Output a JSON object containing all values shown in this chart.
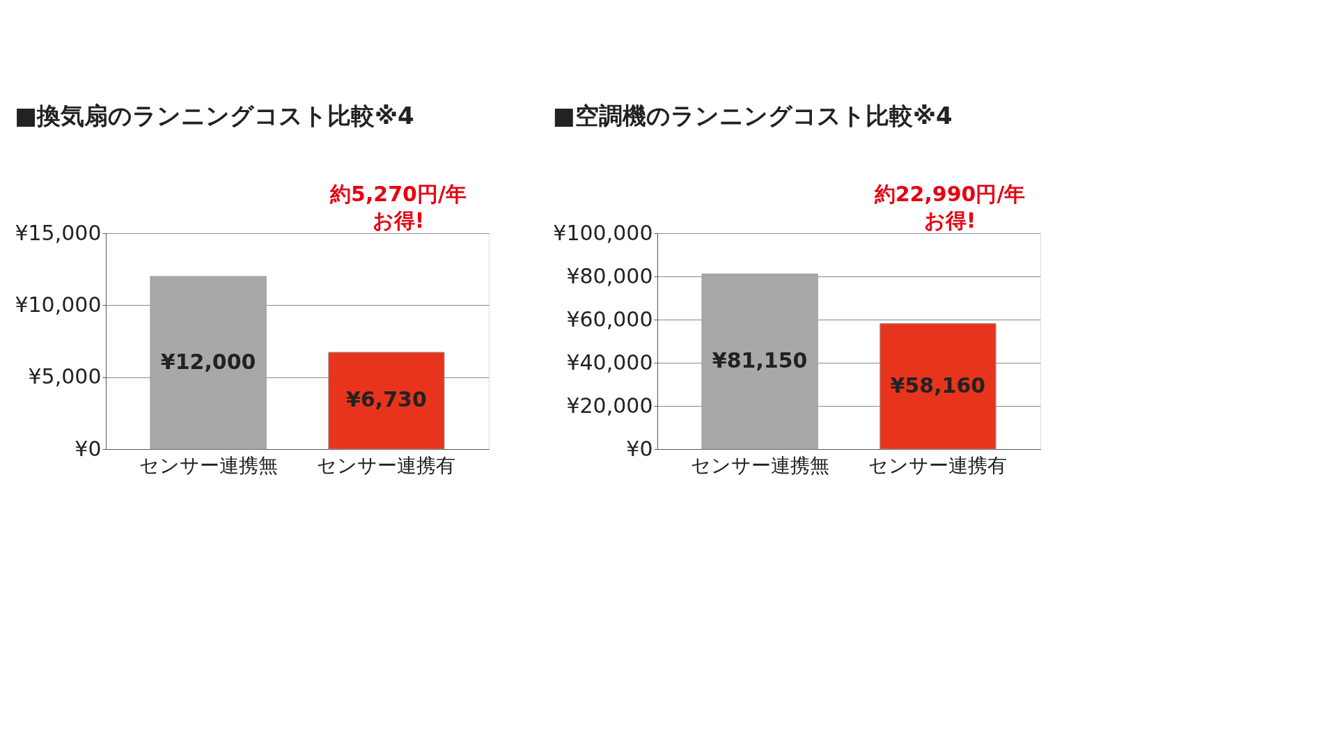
{
  "chart_data": [
    {
      "type": "bar",
      "title": "■換気扇のランニングコスト比較※4",
      "categories": [
        "センサー連携無",
        "センサー連携有"
      ],
      "values": [
        12000,
        6730
      ],
      "colors": [
        "#a8a8a8",
        "#e8341c"
      ],
      "value_labels": [
        "¥12,000",
        "¥6,730"
      ],
      "ylim": [
        0,
        15000
      ],
      "yticks": [
        {
          "value": 0,
          "label": "¥0"
        },
        {
          "value": 5000,
          "label": "¥5,000"
        },
        {
          "value": 10000,
          "label": "¥10,000"
        },
        {
          "value": 15000,
          "label": "¥15,000"
        }
      ],
      "grid": "y",
      "annotations": [
        "約5,270円/年",
        "お得!"
      ]
    },
    {
      "type": "bar",
      "title": "■空調機のランニングコスト比較※4",
      "categories": [
        "センサー連携無",
        "センサー連携有"
      ],
      "values": [
        81150,
        58160
      ],
      "colors": [
        "#a8a8a8",
        "#e8341c"
      ],
      "value_labels": [
        "¥81,150",
        "¥58,160"
      ],
      "ylim": [
        0,
        100000
      ],
      "yticks": [
        {
          "value": 0,
          "label": "¥0"
        },
        {
          "value": 20000,
          "label": "¥20,000"
        },
        {
          "value": 40000,
          "label": "¥40,000"
        },
        {
          "value": 60000,
          "label": "¥60,000"
        },
        {
          "value": 80000,
          "label": "¥80,000"
        },
        {
          "value": 100000,
          "label": "¥100,000"
        }
      ],
      "grid": "y",
      "annotations": [
        "約22,990円/年",
        "お得!"
      ]
    }
  ]
}
